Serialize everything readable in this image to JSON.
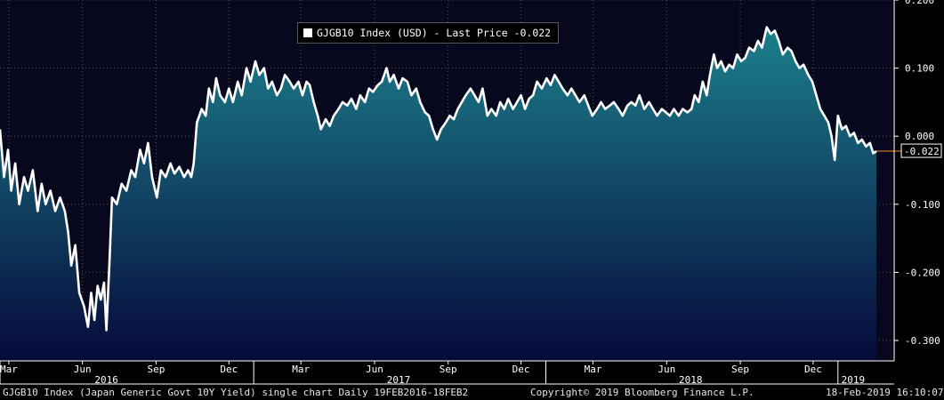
{
  "legend": {
    "label": "GJGB10 Index (USD) - Last Price -0.022",
    "color": "#ffffff"
  },
  "last_price_label": "-0.022",
  "footer": {
    "left": "GJGB10 Index (Japan Generic Govt 10Y Yield) single chart  Daily 19FEB2016-18FEB2",
    "center": "Copyright© 2019 Bloomberg Finance L.P.",
    "right": "18-Feb-2019 16:10:07"
  },
  "colors": {
    "background": "#000000",
    "plot_background": "#07071d",
    "fill_top": "#1c7f8c",
    "fill_bottom": "#060a3a",
    "line": "#ffffff",
    "last_price_line": "#ff8c1a",
    "grid": "#555555"
  },
  "chart_data": {
    "type": "area",
    "title": "",
    "xlabel": "",
    "ylabel": "",
    "ylim": [
      -0.33,
      0.2
    ],
    "yticks": [
      0.2,
      0.1,
      0.0,
      -0.1,
      -0.2,
      -0.3
    ],
    "ytick_labels": [
      "0.200",
      "0.100",
      "0.000",
      "-0.100",
      "-0.200",
      "-0.300"
    ],
    "xlim": [
      "2016-02-19",
      "2019-02-18"
    ],
    "month_ticks": [
      {
        "date": "2016-03-01",
        "label": "Mar"
      },
      {
        "date": "2016-06-01",
        "label": "Jun"
      },
      {
        "date": "2016-09-01",
        "label": "Sep"
      },
      {
        "date": "2016-12-01",
        "label": "Dec"
      },
      {
        "date": "2017-03-01",
        "label": "Mar"
      },
      {
        "date": "2017-06-01",
        "label": "Jun"
      },
      {
        "date": "2017-09-01",
        "label": "Sep"
      },
      {
        "date": "2017-12-01",
        "label": "Dec"
      },
      {
        "date": "2018-03-01",
        "label": "Mar"
      },
      {
        "date": "2018-06-01",
        "label": "Jun"
      },
      {
        "date": "2018-09-01",
        "label": "Sep"
      },
      {
        "date": "2018-12-01",
        "label": "Dec"
      }
    ],
    "year_ticks": [
      {
        "date": "2016-01-01",
        "label": "2016",
        "label_date": "2016-07-01"
      },
      {
        "date": "2017-01-01",
        "label": "2017",
        "label_date": "2017-07-01"
      },
      {
        "date": "2018-01-01",
        "label": "2018",
        "label_date": "2018-07-01"
      },
      {
        "date": "2019-01-01",
        "label": "2019",
        "label_date": "2019-01-20"
      }
    ],
    "grid": true,
    "series": [
      {
        "name": "GJGB10 Index (USD)",
        "last_value": -0.022,
        "points": [
          [
            "2016-02-19",
            0.01
          ],
          [
            "2016-02-24",
            -0.06
          ],
          [
            "2016-02-29",
            -0.02
          ],
          [
            "2016-03-04",
            -0.08
          ],
          [
            "2016-03-09",
            -0.04
          ],
          [
            "2016-03-14",
            -0.1
          ],
          [
            "2016-03-20",
            -0.06
          ],
          [
            "2016-03-25",
            -0.08
          ],
          [
            "2016-03-31",
            -0.05
          ],
          [
            "2016-04-06",
            -0.11
          ],
          [
            "2016-04-11",
            -0.07
          ],
          [
            "2016-04-16",
            -0.1
          ],
          [
            "2016-04-22",
            -0.08
          ],
          [
            "2016-04-28",
            -0.11
          ],
          [
            "2016-05-04",
            -0.09
          ],
          [
            "2016-05-10",
            -0.11
          ],
          [
            "2016-05-14",
            -0.14
          ],
          [
            "2016-05-18",
            -0.19
          ],
          [
            "2016-05-23",
            -0.16
          ],
          [
            "2016-05-28",
            -0.23
          ],
          [
            "2016-06-03",
            -0.25
          ],
          [
            "2016-06-08",
            -0.28
          ],
          [
            "2016-06-12",
            -0.23
          ],
          [
            "2016-06-16",
            -0.27
          ],
          [
            "2016-06-20",
            -0.22
          ],
          [
            "2016-06-24",
            -0.24
          ],
          [
            "2016-06-28",
            -0.215
          ],
          [
            "2016-07-01",
            -0.285
          ],
          [
            "2016-07-05",
            -0.18
          ],
          [
            "2016-07-08",
            -0.09
          ],
          [
            "2016-07-14",
            -0.1
          ],
          [
            "2016-07-20",
            -0.07
          ],
          [
            "2016-07-26",
            -0.08
          ],
          [
            "2016-08-01",
            -0.05
          ],
          [
            "2016-08-06",
            -0.06
          ],
          [
            "2016-08-12",
            -0.02
          ],
          [
            "2016-08-17",
            -0.04
          ],
          [
            "2016-08-22",
            -0.01
          ],
          [
            "2016-08-27",
            -0.06
          ],
          [
            "2016-09-02",
            -0.09
          ],
          [
            "2016-09-07",
            -0.05
          ],
          [
            "2016-09-13",
            -0.06
          ],
          [
            "2016-09-19",
            -0.04
          ],
          [
            "2016-09-24",
            -0.055
          ],
          [
            "2016-09-30",
            -0.045
          ],
          [
            "2016-10-06",
            -0.06
          ],
          [
            "2016-10-11",
            -0.05
          ],
          [
            "2016-10-15",
            -0.06
          ],
          [
            "2016-10-18",
            -0.04
          ],
          [
            "2016-10-22",
            0.02
          ],
          [
            "2016-10-28",
            0.04
          ],
          [
            "2016-11-02",
            0.03
          ],
          [
            "2016-11-06",
            0.07
          ],
          [
            "2016-11-11",
            0.05
          ],
          [
            "2016-11-15",
            0.085
          ],
          [
            "2016-11-20",
            0.06
          ],
          [
            "2016-11-26",
            0.05
          ],
          [
            "2016-12-01",
            0.07
          ],
          [
            "2016-12-06",
            0.05
          ],
          [
            "2016-12-12",
            0.08
          ],
          [
            "2016-12-17",
            0.06
          ],
          [
            "2016-12-23",
            0.1
          ],
          [
            "2016-12-28",
            0.08
          ],
          [
            "2017-01-03",
            0.11
          ],
          [
            "2017-01-08",
            0.09
          ],
          [
            "2017-01-14",
            0.1
          ],
          [
            "2017-01-19",
            0.07
          ],
          [
            "2017-01-24",
            0.08
          ],
          [
            "2017-01-30",
            0.06
          ],
          [
            "2017-02-04",
            0.07
          ],
          [
            "2017-02-09",
            0.09
          ],
          [
            "2017-02-15",
            0.08
          ],
          [
            "2017-02-20",
            0.07
          ],
          [
            "2017-02-26",
            0.08
          ],
          [
            "2017-03-03",
            0.06
          ],
          [
            "2017-03-08",
            0.08
          ],
          [
            "2017-03-12",
            0.075
          ],
          [
            "2017-03-17",
            0.05
          ],
          [
            "2017-03-22",
            0.03
          ],
          [
            "2017-03-26",
            0.01
          ],
          [
            "2017-04-01",
            0.025
          ],
          [
            "2017-04-06",
            0.015
          ],
          [
            "2017-04-11",
            0.03
          ],
          [
            "2017-04-17",
            0.04
          ],
          [
            "2017-04-22",
            0.05
          ],
          [
            "2017-04-28",
            0.045
          ],
          [
            "2017-05-03",
            0.055
          ],
          [
            "2017-05-09",
            0.04
          ],
          [
            "2017-05-14",
            0.06
          ],
          [
            "2017-05-20",
            0.05
          ],
          [
            "2017-05-25",
            0.07
          ],
          [
            "2017-05-30",
            0.065
          ],
          [
            "2017-06-05",
            0.075
          ],
          [
            "2017-06-10",
            0.08
          ],
          [
            "2017-06-16",
            0.1
          ],
          [
            "2017-06-20",
            0.08
          ],
          [
            "2017-06-25",
            0.09
          ],
          [
            "2017-07-01",
            0.07
          ],
          [
            "2017-07-06",
            0.085
          ],
          [
            "2017-07-12",
            0.08
          ],
          [
            "2017-07-17",
            0.06
          ],
          [
            "2017-07-23",
            0.07
          ],
          [
            "2017-07-28",
            0.05
          ],
          [
            "2017-08-03",
            0.035
          ],
          [
            "2017-08-08",
            0.03
          ],
          [
            "2017-08-13",
            0.01
          ],
          [
            "2017-08-18",
            -0.005
          ],
          [
            "2017-08-23",
            0.01
          ],
          [
            "2017-08-29",
            0.02
          ],
          [
            "2017-09-03",
            0.03
          ],
          [
            "2017-09-08",
            0.025
          ],
          [
            "2017-09-13",
            0.04
          ],
          [
            "2017-09-18",
            0.05
          ],
          [
            "2017-09-23",
            0.06
          ],
          [
            "2017-09-29",
            0.07
          ],
          [
            "2017-10-04",
            0.06
          ],
          [
            "2017-10-09",
            0.05
          ],
          [
            "2017-10-14",
            0.07
          ],
          [
            "2017-10-20",
            0.03
          ],
          [
            "2017-10-25",
            0.04
          ],
          [
            "2017-10-31",
            0.03
          ],
          [
            "2017-11-05",
            0.05
          ],
          [
            "2017-11-10",
            0.04
          ],
          [
            "2017-11-15",
            0.055
          ],
          [
            "2017-11-21",
            0.04
          ],
          [
            "2017-11-26",
            0.05
          ],
          [
            "2017-12-01",
            0.06
          ],
          [
            "2017-12-06",
            0.04
          ],
          [
            "2017-12-11",
            0.055
          ],
          [
            "2017-12-16",
            0.06
          ],
          [
            "2017-12-21",
            0.08
          ],
          [
            "2017-12-27",
            0.07
          ],
          [
            "2018-01-02",
            0.085
          ],
          [
            "2018-01-07",
            0.075
          ],
          [
            "2018-01-12",
            0.09
          ],
          [
            "2018-01-17",
            0.08
          ],
          [
            "2018-01-22",
            0.07
          ],
          [
            "2018-01-28",
            0.06
          ],
          [
            "2018-02-02",
            0.07
          ],
          [
            "2018-02-07",
            0.06
          ],
          [
            "2018-02-12",
            0.05
          ],
          [
            "2018-02-18",
            0.06
          ],
          [
            "2018-02-23",
            0.045
          ],
          [
            "2018-02-28",
            0.03
          ],
          [
            "2018-03-06",
            0.04
          ],
          [
            "2018-03-11",
            0.05
          ],
          [
            "2018-03-16",
            0.04
          ],
          [
            "2018-03-22",
            0.045
          ],
          [
            "2018-03-27",
            0.05
          ],
          [
            "2018-04-02",
            0.04
          ],
          [
            "2018-04-07",
            0.03
          ],
          [
            "2018-04-13",
            0.045
          ],
          [
            "2018-04-18",
            0.05
          ],
          [
            "2018-04-23",
            0.045
          ],
          [
            "2018-04-28",
            0.06
          ],
          [
            "2018-05-04",
            0.04
          ],
          [
            "2018-05-10",
            0.05
          ],
          [
            "2018-05-15",
            0.04
          ],
          [
            "2018-05-20",
            0.03
          ],
          [
            "2018-05-26",
            0.04
          ],
          [
            "2018-05-31",
            0.035
          ],
          [
            "2018-06-05",
            0.03
          ],
          [
            "2018-06-10",
            0.04
          ],
          [
            "2018-06-16",
            0.03
          ],
          [
            "2018-06-21",
            0.04
          ],
          [
            "2018-06-27",
            0.035
          ],
          [
            "2018-07-02",
            0.04
          ],
          [
            "2018-07-06",
            0.06
          ],
          [
            "2018-07-11",
            0.05
          ],
          [
            "2018-07-16",
            0.08
          ],
          [
            "2018-07-21",
            0.06
          ],
          [
            "2018-07-25",
            0.09
          ],
          [
            "2018-07-30",
            0.12
          ],
          [
            "2018-08-03",
            0.1
          ],
          [
            "2018-08-08",
            0.11
          ],
          [
            "2018-08-13",
            0.095
          ],
          [
            "2018-08-18",
            0.105
          ],
          [
            "2018-08-23",
            0.1
          ],
          [
            "2018-08-28",
            0.12
          ],
          [
            "2018-09-02",
            0.11
          ],
          [
            "2018-09-07",
            0.115
          ],
          [
            "2018-09-12",
            0.13
          ],
          [
            "2018-09-18",
            0.125
          ],
          [
            "2018-09-23",
            0.14
          ],
          [
            "2018-09-28",
            0.13
          ],
          [
            "2018-10-04",
            0.16
          ],
          [
            "2018-10-09",
            0.15
          ],
          [
            "2018-10-14",
            0.155
          ],
          [
            "2018-10-19",
            0.14
          ],
          [
            "2018-10-24",
            0.12
          ],
          [
            "2018-10-30",
            0.13
          ],
          [
            "2018-11-04",
            0.125
          ],
          [
            "2018-11-09",
            0.11
          ],
          [
            "2018-11-14",
            0.1
          ],
          [
            "2018-11-19",
            0.105
          ],
          [
            "2018-11-25",
            0.09
          ],
          [
            "2018-11-30",
            0.08
          ],
          [
            "2018-12-05",
            0.06
          ],
          [
            "2018-12-10",
            0.04
          ],
          [
            "2018-12-15",
            0.03
          ],
          [
            "2018-12-20",
            0.02
          ],
          [
            "2018-12-24",
            0.0
          ],
          [
            "2018-12-28",
            -0.035
          ],
          [
            "2019-01-01",
            0.03
          ],
          [
            "2019-01-06",
            0.01
          ],
          [
            "2019-01-11",
            0.015
          ],
          [
            "2019-01-16",
            0.0
          ],
          [
            "2019-01-21",
            0.005
          ],
          [
            "2019-01-26",
            -0.01
          ],
          [
            "2019-01-31",
            -0.005
          ],
          [
            "2019-02-05",
            -0.015
          ],
          [
            "2019-02-10",
            -0.01
          ],
          [
            "2019-02-14",
            -0.025
          ],
          [
            "2019-02-18",
            -0.022
          ]
        ]
      }
    ]
  }
}
